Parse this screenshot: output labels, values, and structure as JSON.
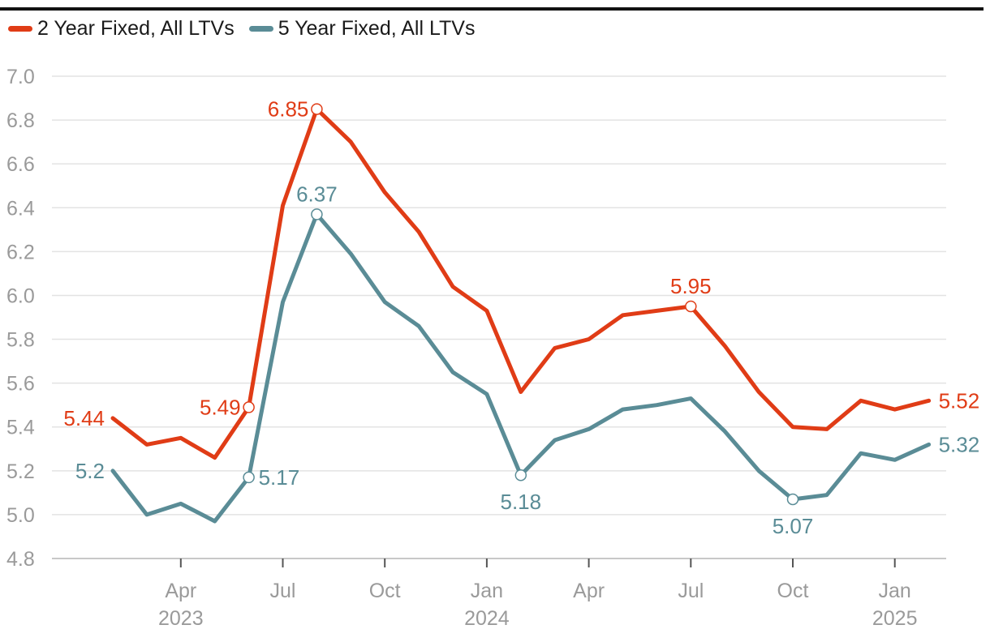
{
  "chart_data": {
    "type": "line",
    "title": "",
    "xlabel": "",
    "ylabel": "",
    "ylim": [
      4.8,
      7.0
    ],
    "yticks": [
      "4.8",
      "5.0",
      "5.2",
      "5.4",
      "5.6",
      "5.8",
      "6.0",
      "6.2",
      "6.4",
      "6.6",
      "6.8",
      "7.0"
    ],
    "x": [
      "2023-02",
      "2023-03",
      "2023-04",
      "2023-05",
      "2023-06",
      "2023-07",
      "2023-08",
      "2023-09",
      "2023-10",
      "2023-11",
      "2023-12",
      "2024-01",
      "2024-02",
      "2024-03",
      "2024-04",
      "2024-05",
      "2024-06",
      "2024-07",
      "2024-08",
      "2024-09",
      "2024-10",
      "2024-11",
      "2024-12",
      "2025-01",
      "2025-02"
    ],
    "xticks": [
      {
        "index": 2,
        "line1": "Apr",
        "line2": "2023"
      },
      {
        "index": 5,
        "line1": "Jul",
        "line2": ""
      },
      {
        "index": 8,
        "line1": "Oct",
        "line2": ""
      },
      {
        "index": 11,
        "line1": "Jan",
        "line2": "2024"
      },
      {
        "index": 14,
        "line1": "Apr",
        "line2": ""
      },
      {
        "index": 17,
        "line1": "Jul",
        "line2": ""
      },
      {
        "index": 20,
        "line1": "Oct",
        "line2": ""
      },
      {
        "index": 23,
        "line1": "Jan",
        "line2": "2025"
      }
    ],
    "legend_position": "top-left",
    "series": [
      {
        "name": "2 Year Fixed, All LTVs",
        "color": "#e03c16",
        "values": [
          5.44,
          5.32,
          5.35,
          5.26,
          5.49,
          6.41,
          6.85,
          6.7,
          6.47,
          6.29,
          6.04,
          5.93,
          5.56,
          5.76,
          5.8,
          5.91,
          5.93,
          5.95,
          5.77,
          5.56,
          5.4,
          5.39,
          5.52,
          5.48,
          5.52
        ],
        "annotations": [
          {
            "index": 0,
            "text": "5.44",
            "marker": false,
            "anchor": "left"
          },
          {
            "index": 4,
            "text": "5.49",
            "marker": true,
            "anchor": "left"
          },
          {
            "index": 6,
            "text": "6.85",
            "marker": true,
            "anchor": "left"
          },
          {
            "index": 17,
            "text": "5.95",
            "marker": true,
            "anchor": "above"
          },
          {
            "index": 24,
            "text": "5.52",
            "marker": false,
            "anchor": "right"
          }
        ]
      },
      {
        "name": "5 Year Fixed, All LTVs",
        "color": "#5a8c96",
        "values": [
          5.2,
          5.0,
          5.05,
          4.97,
          5.17,
          5.97,
          6.37,
          6.19,
          5.97,
          5.86,
          5.65,
          5.55,
          5.18,
          5.34,
          5.39,
          5.48,
          5.5,
          5.53,
          5.38,
          5.2,
          5.07,
          5.09,
          5.28,
          5.25,
          5.32
        ],
        "annotations": [
          {
            "index": 0,
            "text": "5.2",
            "marker": false,
            "anchor": "left"
          },
          {
            "index": 4,
            "text": "5.17",
            "marker": true,
            "anchor": "right"
          },
          {
            "index": 6,
            "text": "6.37",
            "marker": true,
            "anchor": "above"
          },
          {
            "index": 12,
            "text": "5.18",
            "marker": true,
            "anchor": "below"
          },
          {
            "index": 20,
            "text": "5.07",
            "marker": true,
            "anchor": "below"
          },
          {
            "index": 24,
            "text": "5.32",
            "marker": false,
            "anchor": "right"
          }
        ]
      }
    ]
  }
}
